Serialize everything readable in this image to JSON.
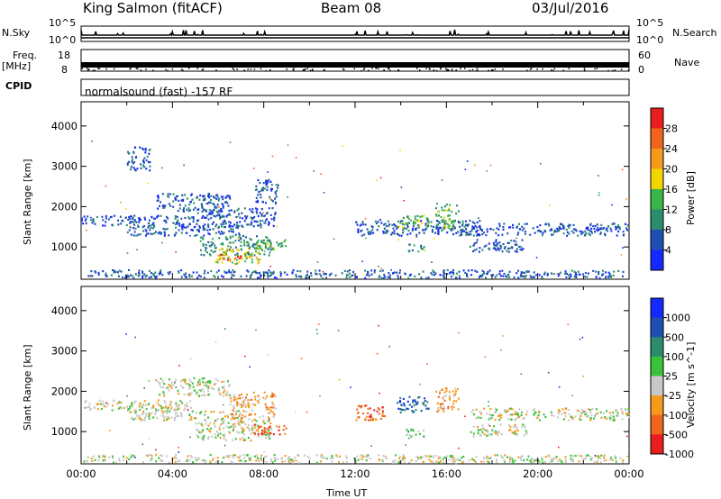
{
  "header": {
    "station": "King Salmon (fitACF)",
    "beam": "Beam 08",
    "date": "03/Jul/2016"
  },
  "status_panel": {
    "nsky_label": "N.Sky",
    "nsearch_label": "N.Search",
    "freq_label": "Freq.",
    "freq_unit": "[MHz]",
    "nave_label": "Nave",
    "cpid_label": "CPID",
    "cpid_text": "normalsound (fast) -157 RF",
    "nsky_ticks": [
      "10^5",
      "10^0"
    ],
    "nsearch_ticks": [
      "10^5",
      "10^0"
    ],
    "freq_ticks": [
      "18",
      "8"
    ],
    "nave_ticks": [
      "60",
      "0"
    ]
  },
  "chart_data": [
    {
      "type": "heatmap",
      "name": "power",
      "ylabel": "Slant Range [km]",
      "yticks": [
        "1000",
        "2000",
        "3000",
        "4000"
      ],
      "ylim": [
        200,
        4600
      ],
      "xlim": [
        "00:00",
        "24:00"
      ],
      "colorbar_label": "Power [dB]",
      "colorbar_ticks": [
        "4",
        "8",
        "12",
        "16",
        "20",
        "24",
        "28"
      ],
      "colorbar_colors": [
        "#1428ff",
        "#1f4fb0",
        "#2b8c6e",
        "#39b54a",
        "#f2d400",
        "#f59a1b",
        "#f0641e",
        "#e81e1e"
      ],
      "echo_regions": [
        {
          "t0": 0.0,
          "t1": 5.0,
          "r0": 1550,
          "r1": 1800,
          "level": 1
        },
        {
          "t0": 2.0,
          "t1": 7.0,
          "r0": 1300,
          "r1": 1550,
          "level": 1
        },
        {
          "t0": 3.3,
          "t1": 6.5,
          "r0": 1900,
          "r1": 2350,
          "level": 1
        },
        {
          "t0": 5.0,
          "t1": 8.5,
          "r0": 1500,
          "r1": 2000,
          "level": 1
        },
        {
          "t0": 5.2,
          "t1": 8.3,
          "r0": 800,
          "r1": 1300,
          "level": 2
        },
        {
          "t0": 5.8,
          "t1": 7.8,
          "r0": 600,
          "r1": 1000,
          "level": 4
        },
        {
          "t0": 6.0,
          "t1": 7.0,
          "r0": 700,
          "r1": 850,
          "level": 6
        },
        {
          "t0": 7.5,
          "t1": 9.0,
          "r0": 950,
          "r1": 1200,
          "level": 3
        },
        {
          "t0": 7.6,
          "t1": 8.6,
          "r0": 2100,
          "r1": 2700,
          "level": 1
        },
        {
          "t0": 2.0,
          "t1": 3.0,
          "r0": 2900,
          "r1": 3500,
          "level": 1
        },
        {
          "t0": 12.0,
          "t1": 17.5,
          "r0": 1300,
          "r1": 1700,
          "level": 1
        },
        {
          "t0": 13.8,
          "t1": 15.2,
          "r0": 1500,
          "r1": 1800,
          "level": 3
        },
        {
          "t0": 15.5,
          "t1": 16.5,
          "r0": 1500,
          "r1": 2100,
          "level": 3
        },
        {
          "t0": 14.2,
          "t1": 15.0,
          "r0": 900,
          "r1": 1100,
          "level": 2
        },
        {
          "t0": 16.5,
          "t1": 24.0,
          "r0": 1300,
          "r1": 1600,
          "level": 1
        },
        {
          "t0": 17.0,
          "t1": 19.5,
          "r0": 900,
          "r1": 1200,
          "level": 1
        },
        {
          "t0": 0.0,
          "t1": 24.0,
          "r0": 250,
          "r1": 450,
          "level": 1
        }
      ]
    },
    {
      "type": "heatmap",
      "name": "velocity",
      "ylabel": "Slant Range [km]",
      "yticks": [
        "1000",
        "2000",
        "3000",
        "4000"
      ],
      "ylim": [
        200,
        4600
      ],
      "xlim": [
        "00:00",
        "24:00"
      ],
      "xlabel": "Time UT",
      "xticks": [
        "00:00",
        "04:00",
        "08:00",
        "12:00",
        "16:00",
        "20:00",
        "00:00"
      ],
      "colorbar_label": "Velocity [m s^-1]",
      "colorbar_ticks": [
        "1000",
        "500",
        "100",
        "25",
        "-25",
        "-100",
        "-500",
        "-1000"
      ],
      "colorbar_colors": [
        "#1428ff",
        "#1f4fb0",
        "#2b8c6e",
        "#39c23a",
        "#c8c8c8",
        "#f59a1b",
        "#f0641e",
        "#e81e1e"
      ],
      "echo_regions": [
        {
          "t0": 0.0,
          "t1": 5.0,
          "r0": 1550,
          "r1": 1800,
          "level": 4
        },
        {
          "t0": 2.0,
          "t1": 7.0,
          "r0": 1300,
          "r1": 1550,
          "level": 4
        },
        {
          "t0": 3.3,
          "t1": 6.5,
          "r0": 1900,
          "r1": 2350,
          "level": 4
        },
        {
          "t0": 5.0,
          "t1": 8.3,
          "r0": 800,
          "r1": 1300,
          "level": 4
        },
        {
          "t0": 6.5,
          "t1": 8.5,
          "r0": 1300,
          "r1": 2000,
          "level": 5
        },
        {
          "t0": 7.5,
          "t1": 9.0,
          "r0": 950,
          "r1": 1200,
          "level": 6
        },
        {
          "t0": 12.0,
          "t1": 13.3,
          "r0": 1300,
          "r1": 1700,
          "level": 6
        },
        {
          "t0": 13.8,
          "t1": 15.2,
          "r0": 1500,
          "r1": 1900,
          "level": 1
        },
        {
          "t0": 15.5,
          "t1": 16.5,
          "r0": 1500,
          "r1": 2100,
          "level": 5
        },
        {
          "t0": 14.2,
          "t1": 15.0,
          "r0": 900,
          "r1": 1100,
          "level": 3
        },
        {
          "t0": 17.0,
          "t1": 24.0,
          "r0": 1300,
          "r1": 1600,
          "level": 4
        },
        {
          "t0": 17.0,
          "t1": 19.5,
          "r0": 900,
          "r1": 1200,
          "level": 4
        },
        {
          "t0": 0.0,
          "t1": 24.0,
          "r0": 250,
          "r1": 450,
          "level": 4
        }
      ]
    }
  ]
}
